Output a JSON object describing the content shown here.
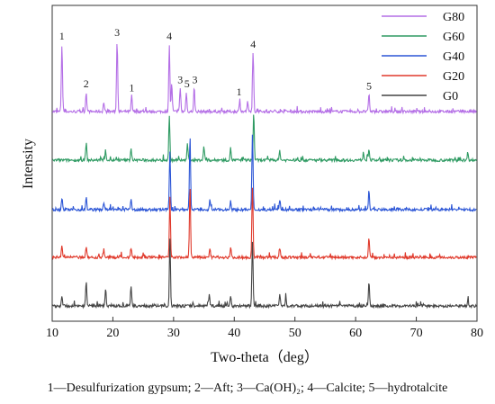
{
  "chart_data": {
    "type": "line",
    "xlabel": "Two-theta（deg）",
    "ylabel": "Intensity",
    "xlim": [
      10,
      80
    ],
    "xticks": [
      "10",
      "20",
      "30",
      "40",
      "50",
      "60",
      "70",
      "80"
    ],
    "grid": false,
    "legend_position": "top-right",
    "series": [
      {
        "name": "G80",
        "color": "#b46ee6",
        "offset": 4,
        "peaks": [
          [
            11.6,
            0.85
          ],
          [
            15.6,
            0.25
          ],
          [
            18.5,
            0.12
          ],
          [
            20.7,
            0.9
          ],
          [
            23.1,
            0.2
          ],
          [
            29.3,
            0.85
          ],
          [
            29.7,
            0.35
          ],
          [
            31.1,
            0.3
          ],
          [
            32.1,
            0.25
          ],
          [
            33.4,
            0.3
          ],
          [
            40.9,
            0.15
          ],
          [
            42.2,
            0.12
          ],
          [
            43.1,
            0.75
          ],
          [
            62.2,
            0.22
          ]
        ]
      },
      {
        "name": "G60",
        "color": "#2e9a62",
        "offset": 3,
        "peaks": [
          [
            15.6,
            0.22
          ],
          [
            18.8,
            0.12
          ],
          [
            23.0,
            0.15
          ],
          [
            29.3,
            0.55
          ],
          [
            32.3,
            0.2
          ],
          [
            35.0,
            0.18
          ],
          [
            39.4,
            0.15
          ],
          [
            43.2,
            0.6
          ],
          [
            47.5,
            0.12
          ],
          [
            61.3,
            0.1
          ],
          [
            62.2,
            0.15
          ],
          [
            78.5,
            0.1
          ]
        ]
      },
      {
        "name": "G40",
        "color": "#2b55d6",
        "offset": 2,
        "peaks": [
          [
            11.6,
            0.15
          ],
          [
            15.6,
            0.15
          ],
          [
            18.5,
            0.1
          ],
          [
            23.0,
            0.12
          ],
          [
            29.4,
            0.75
          ],
          [
            32.7,
            0.95
          ],
          [
            36.0,
            0.12
          ],
          [
            39.4,
            0.12
          ],
          [
            43.0,
            0.95
          ],
          [
            47.5,
            0.12
          ],
          [
            62.2,
            0.25
          ]
        ]
      },
      {
        "name": "G20",
        "color": "#e0392b",
        "offset": 1,
        "peaks": [
          [
            11.6,
            0.15
          ],
          [
            15.6,
            0.12
          ],
          [
            18.5,
            0.1
          ],
          [
            23.0,
            0.12
          ],
          [
            29.4,
            0.75
          ],
          [
            32.7,
            0.9
          ],
          [
            36.0,
            0.12
          ],
          [
            39.4,
            0.12
          ],
          [
            43.0,
            0.9
          ],
          [
            47.5,
            0.12
          ],
          [
            62.2,
            0.25
          ]
        ]
      },
      {
        "name": "G0",
        "color": "#444444",
        "offset": 0,
        "peaks": [
          [
            11.6,
            0.12
          ],
          [
            15.6,
            0.3
          ],
          [
            18.8,
            0.22
          ],
          [
            23.0,
            0.25
          ],
          [
            29.4,
            0.85
          ],
          [
            35.9,
            0.15
          ],
          [
            39.4,
            0.12
          ],
          [
            43.0,
            0.8
          ],
          [
            47.5,
            0.15
          ],
          [
            48.5,
            0.12
          ],
          [
            62.2,
            0.3
          ],
          [
            78.5,
            0.08
          ]
        ]
      }
    ],
    "annotations": [
      {
        "text": "1",
        "x": 11.6
      },
      {
        "text": "2",
        "x": 15.6
      },
      {
        "text": "3",
        "x": 20.7
      },
      {
        "text": "1",
        "x": 23.1
      },
      {
        "text": "4",
        "x": 29.3
      },
      {
        "text": "3",
        "x": 31.1
      },
      {
        "text": "5",
        "x": 32.2
      },
      {
        "text": "3",
        "x": 33.5
      },
      {
        "text": "1",
        "x": 40.8
      },
      {
        "text": "4",
        "x": 43.1
      },
      {
        "text": "5",
        "x": 62.2
      }
    ]
  },
  "caption": "1—Desulfurization gypsum; 2—Aft; 3—Ca(OH)₂; 4—Calcite; 5—hydrotalcite"
}
